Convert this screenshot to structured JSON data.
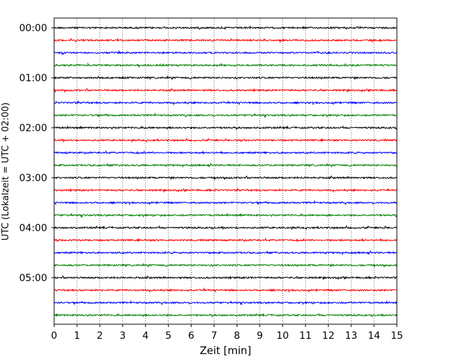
{
  "chart_data": {
    "type": "line",
    "title": "",
    "xlabel": "Zeit  [min]",
    "ylabel": "UTC (Lokalzeit = UTC + 02:00)",
    "xlim": [
      0,
      15
    ],
    "x_ticks": [
      "0",
      "1",
      "2",
      "3",
      "4",
      "5",
      "6",
      "7",
      "8",
      "9",
      "10",
      "11",
      "12",
      "13",
      "14",
      "15"
    ],
    "y_ticks": [
      "00:00",
      "01:00",
      "02:00",
      "03:00",
      "04:00",
      "05:00"
    ],
    "grid": "vertical dotted",
    "trace_colors": [
      "#000000",
      "#ff0000",
      "#0000ff",
      "#008000"
    ],
    "traces": [
      {
        "start": "00:00",
        "color": "#000000"
      },
      {
        "start": "00:15",
        "color": "#ff0000"
      },
      {
        "start": "00:30",
        "color": "#0000ff"
      },
      {
        "start": "00:45",
        "color": "#008000"
      },
      {
        "start": "01:00",
        "color": "#000000"
      },
      {
        "start": "01:15",
        "color": "#ff0000"
      },
      {
        "start": "01:30",
        "color": "#0000ff"
      },
      {
        "start": "01:45",
        "color": "#008000"
      },
      {
        "start": "02:00",
        "color": "#000000"
      },
      {
        "start": "02:15",
        "color": "#ff0000"
      },
      {
        "start": "02:30",
        "color": "#0000ff"
      },
      {
        "start": "02:45",
        "color": "#008000"
      },
      {
        "start": "03:00",
        "color": "#000000"
      },
      {
        "start": "03:15",
        "color": "#ff0000"
      },
      {
        "start": "03:30",
        "color": "#0000ff"
      },
      {
        "start": "03:45",
        "color": "#008000"
      },
      {
        "start": "04:00",
        "color": "#000000"
      },
      {
        "start": "04:15",
        "color": "#ff0000"
      },
      {
        "start": "04:30",
        "color": "#0000ff"
      },
      {
        "start": "04:45",
        "color": "#008000"
      },
      {
        "start": "05:00",
        "color": "#000000"
      },
      {
        "start": "05:15",
        "color": "#ff0000"
      },
      {
        "start": "05:30",
        "color": "#0000ff"
      },
      {
        "start": "05:45",
        "color": "#008000"
      }
    ]
  }
}
